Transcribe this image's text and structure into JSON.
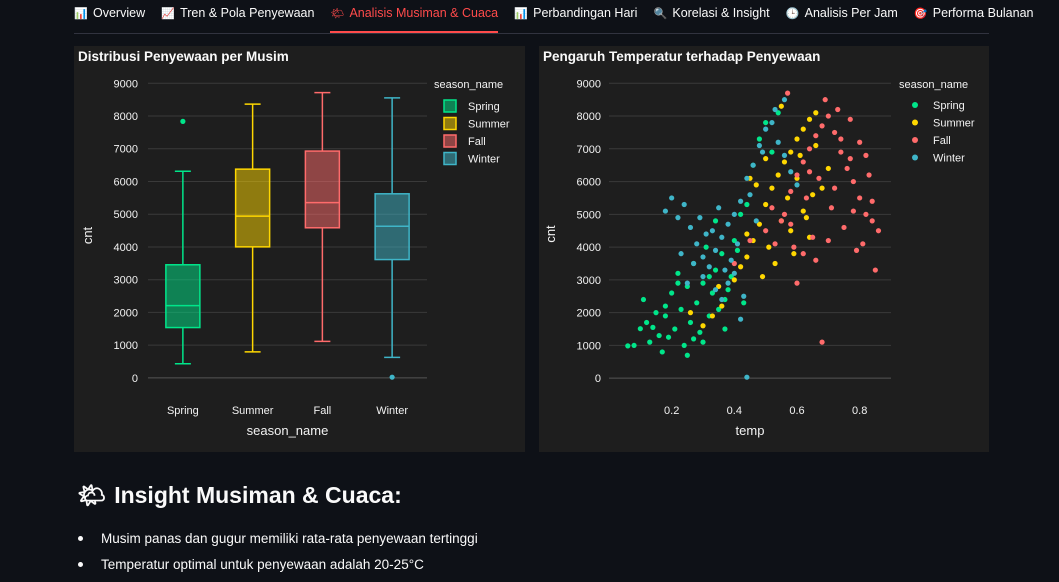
{
  "tabs": [
    {
      "icon": "📊",
      "icon_name": "bar-chart-icon",
      "label": "Overview",
      "active": false
    },
    {
      "icon": "📈",
      "icon_name": "trend-chart-icon",
      "label": "Tren & Pola Penyewaan",
      "active": false
    },
    {
      "icon": "🌤",
      "icon_name": "sun-cloud-icon",
      "label": "Analisis Musiman & Cuaca",
      "active": true
    },
    {
      "icon": "📊",
      "icon_name": "bar-chart-icon",
      "label": "Perbandingan Hari",
      "active": false
    },
    {
      "icon": "🔍",
      "icon_name": "magnifier-icon",
      "label": "Korelasi & Insight",
      "active": false
    },
    {
      "icon": "🕒",
      "icon_name": "clock-icon",
      "label": "Analisis Per Jam",
      "active": false
    },
    {
      "icon": "🎯",
      "icon_name": "target-icon",
      "label": "Performa Bulanan",
      "active": false
    }
  ],
  "colors": {
    "accent": "#ff4b4b",
    "Spring": "#00e68a",
    "Summer": "#ffd700",
    "Fall": "#ff6b6b",
    "Winter": "#3fb5c8"
  },
  "chart_data": [
    {
      "type": "box",
      "title": "Distribusi Penyewaan per Musim",
      "xlabel": "season_name",
      "ylabel": "cnt",
      "ylim": [
        -400,
        9100
      ],
      "yticks": [
        0,
        1000,
        2000,
        3000,
        4000,
        5000,
        6000,
        7000,
        8000,
        9000
      ],
      "legend_title": "season_name",
      "categories": [
        "Spring",
        "Summer",
        "Fall",
        "Winter"
      ],
      "boxes": [
        {
          "name": "Spring",
          "min": 431,
          "q1": 1538,
          "median": 2209,
          "q3": 3456,
          "max": 6312,
          "outliers": [
            7836
          ]
        },
        {
          "name": "Summer",
          "min": 795,
          "q1": 4003,
          "median": 4942,
          "q3": 6377,
          "max": 8362,
          "outliers": []
        },
        {
          "name": "Fall",
          "min": 1115,
          "q1": 4586,
          "median": 5354,
          "q3": 6929,
          "max": 8714,
          "outliers": []
        },
        {
          "name": "Winter",
          "min": 627,
          "q1": 3615,
          "median": 4634,
          "q3": 5624,
          "max": 8555,
          "outliers": [
            22
          ]
        }
      ]
    },
    {
      "type": "scatter",
      "title": "Pengaruh Temperatur terhadap Penyewaan",
      "xlabel": "temp",
      "ylabel": "cnt",
      "xlim": [
        0.0,
        0.9
      ],
      "ylim": [
        -300,
        9100
      ],
      "xticks": [
        0.2,
        0.4,
        0.6,
        0.8
      ],
      "yticks": [
        0,
        1000,
        2000,
        3000,
        4000,
        5000,
        6000,
        7000,
        8000,
        9000
      ],
      "legend_title": "season_name",
      "series": [
        {
          "name": "Spring",
          "points": [
            [
              0.06,
              985
            ],
            [
              0.08,
              1000
            ],
            [
              0.1,
              1510
            ],
            [
              0.11,
              2400
            ],
            [
              0.12,
              1700
            ],
            [
              0.13,
              1100
            ],
            [
              0.14,
              1550
            ],
            [
              0.15,
              2000
            ],
            [
              0.16,
              1300
            ],
            [
              0.17,
              800
            ],
            [
              0.18,
              1900
            ],
            [
              0.19,
              1250
            ],
            [
              0.2,
              2600
            ],
            [
              0.21,
              1500
            ],
            [
              0.22,
              3200
            ],
            [
              0.23,
              2100
            ],
            [
              0.24,
              1000
            ],
            [
              0.25,
              2800
            ],
            [
              0.26,
              1700
            ],
            [
              0.27,
              3500
            ],
            [
              0.28,
              2300
            ],
            [
              0.29,
              1400
            ],
            [
              0.3,
              2900
            ],
            [
              0.31,
              4000
            ],
            [
              0.32,
              1900
            ],
            [
              0.33,
              2600
            ],
            [
              0.34,
              3300
            ],
            [
              0.35,
              2100
            ],
            [
              0.36,
              3800
            ],
            [
              0.37,
              1500
            ],
            [
              0.38,
              2700
            ],
            [
              0.39,
              3100
            ],
            [
              0.4,
              4200
            ],
            [
              0.42,
              5000
            ],
            [
              0.44,
              5300
            ],
            [
              0.46,
              6500
            ],
            [
              0.48,
              7300
            ],
            [
              0.5,
              7800
            ],
            [
              0.52,
              6900
            ],
            [
              0.54,
              8100
            ],
            [
              0.43,
              2300
            ],
            [
              0.25,
              700
            ],
            [
              0.18,
              2200
            ],
            [
              0.3,
              1100
            ],
            [
              0.34,
              4800
            ],
            [
              0.22,
              2900
            ],
            [
              0.27,
              1200
            ],
            [
              0.32,
              3100
            ],
            [
              0.37,
              2400
            ],
            [
              0.41,
              3900
            ]
          ]
        },
        {
          "name": "Summer",
          "points": [
            [
              0.26,
              2000
            ],
            [
              0.3,
              1600
            ],
            [
              0.33,
              1900
            ],
            [
              0.36,
              2200
            ],
            [
              0.4,
              3000
            ],
            [
              0.42,
              3400
            ],
            [
              0.44,
              3700
            ],
            [
              0.46,
              4200
            ],
            [
              0.48,
              4700
            ],
            [
              0.5,
              5300
            ],
            [
              0.52,
              5800
            ],
            [
              0.54,
              6200
            ],
            [
              0.56,
              6600
            ],
            [
              0.58,
              6900
            ],
            [
              0.6,
              7300
            ],
            [
              0.62,
              7600
            ],
            [
              0.64,
              7900
            ],
            [
              0.66,
              8100
            ],
            [
              0.55,
              8300
            ],
            [
              0.5,
              6700
            ],
            [
              0.47,
              5900
            ],
            [
              0.45,
              6100
            ],
            [
              0.58,
              4500
            ],
            [
              0.62,
              5100
            ],
            [
              0.64,
              4300
            ],
            [
              0.68,
              5800
            ],
            [
              0.7,
              6400
            ],
            [
              0.53,
              3500
            ],
            [
              0.49,
              3100
            ],
            [
              0.57,
              5500
            ],
            [
              0.6,
              6100
            ],
            [
              0.63,
              4900
            ],
            [
              0.66,
              7100
            ],
            [
              0.44,
              4400
            ],
            [
              0.51,
              4000
            ],
            [
              0.55,
              4800
            ],
            [
              0.59,
              3800
            ],
            [
              0.61,
              6800
            ],
            [
              0.65,
              5600
            ],
            [
              0.35,
              2800
            ]
          ]
        },
        {
          "name": "Fall",
          "points": [
            [
              0.4,
              3500
            ],
            [
              0.45,
              4200
            ],
            [
              0.5,
              4500
            ],
            [
              0.52,
              5200
            ],
            [
              0.55,
              4800
            ],
            [
              0.58,
              5700
            ],
            [
              0.6,
              6200
            ],
            [
              0.62,
              6600
            ],
            [
              0.64,
              7000
            ],
            [
              0.66,
              7400
            ],
            [
              0.68,
              7700
            ],
            [
              0.7,
              8000
            ],
            [
              0.72,
              7500
            ],
            [
              0.74,
              6900
            ],
            [
              0.76,
              6400
            ],
            [
              0.78,
              6000
            ],
            [
              0.8,
              5500
            ],
            [
              0.82,
              5000
            ],
            [
              0.84,
              4800
            ],
            [
              0.85,
              3300
            ],
            [
              0.86,
              4500
            ],
            [
              0.83,
              6200
            ],
            [
              0.8,
              7200
            ],
            [
              0.77,
              7900
            ],
            [
              0.73,
              8200
            ],
            [
              0.69,
              8500
            ],
            [
              0.65,
              4300
            ],
            [
              0.62,
              3800
            ],
            [
              0.59,
              4000
            ],
            [
              0.56,
              5000
            ],
            [
              0.63,
              5500
            ],
            [
              0.67,
              6100
            ],
            [
              0.71,
              5200
            ],
            [
              0.75,
              4600
            ],
            [
              0.79,
              3900
            ],
            [
              0.81,
              4100
            ],
            [
              0.68,
              1100
            ],
            [
              0.72,
              5800
            ],
            [
              0.74,
              7300
            ],
            [
              0.77,
              6700
            ],
            [
              0.7,
              4200
            ],
            [
              0.66,
              3600
            ],
            [
              0.6,
              2900
            ],
            [
              0.78,
              5100
            ],
            [
              0.82,
              6800
            ],
            [
              0.64,
              6300
            ],
            [
              0.58,
              4700
            ],
            [
              0.53,
              4100
            ],
            [
              0.57,
              8700
            ],
            [
              0.84,
              5400
            ]
          ]
        },
        {
          "name": "Winter",
          "points": [
            [
              0.18,
              5100
            ],
            [
              0.2,
              5500
            ],
            [
              0.22,
              4900
            ],
            [
              0.24,
              5300
            ],
            [
              0.26,
              4600
            ],
            [
              0.28,
              4100
            ],
            [
              0.3,
              3700
            ],
            [
              0.32,
              3400
            ],
            [
              0.34,
              3900
            ],
            [
              0.36,
              4300
            ],
            [
              0.38,
              4700
            ],
            [
              0.4,
              5000
            ],
            [
              0.42,
              5400
            ],
            [
              0.44,
              6100
            ],
            [
              0.46,
              6500
            ],
            [
              0.48,
              7100
            ],
            [
              0.5,
              7600
            ],
            [
              0.52,
              7800
            ],
            [
              0.54,
              7200
            ],
            [
              0.56,
              6800
            ],
            [
              0.58,
              6300
            ],
            [
              0.6,
              5900
            ],
            [
              0.34,
              2700
            ],
            [
              0.36,
              2400
            ],
            [
              0.38,
              2900
            ],
            [
              0.4,
              3200
            ],
            [
              0.42,
              1800
            ],
            [
              0.44,
              30
            ],
            [
              0.3,
              3100
            ],
            [
              0.27,
              3500
            ],
            [
              0.25,
              2900
            ],
            [
              0.33,
              4500
            ],
            [
              0.37,
              3300
            ],
            [
              0.41,
              4100
            ],
            [
              0.45,
              5600
            ],
            [
              0.49,
              6900
            ],
            [
              0.53,
              8200
            ],
            [
              0.56,
              8500
            ],
            [
              0.47,
              4800
            ],
            [
              0.39,
              3600
            ],
            [
              0.31,
              4400
            ],
            [
              0.23,
              3800
            ],
            [
              0.43,
              2500
            ],
            [
              0.35,
              5200
            ],
            [
              0.29,
              4900
            ]
          ]
        }
      ]
    }
  ],
  "insight": {
    "icon": "🌤",
    "icon_name": "sun-cloud-icon",
    "title": "Insight Musiman & Cuaca:",
    "bullets": [
      "Musim panas dan gugur memiliki rata-rata penyewaan tertinggi",
      "Temperatur optimal untuk penyewaan adalah 20-25°C"
    ]
  }
}
